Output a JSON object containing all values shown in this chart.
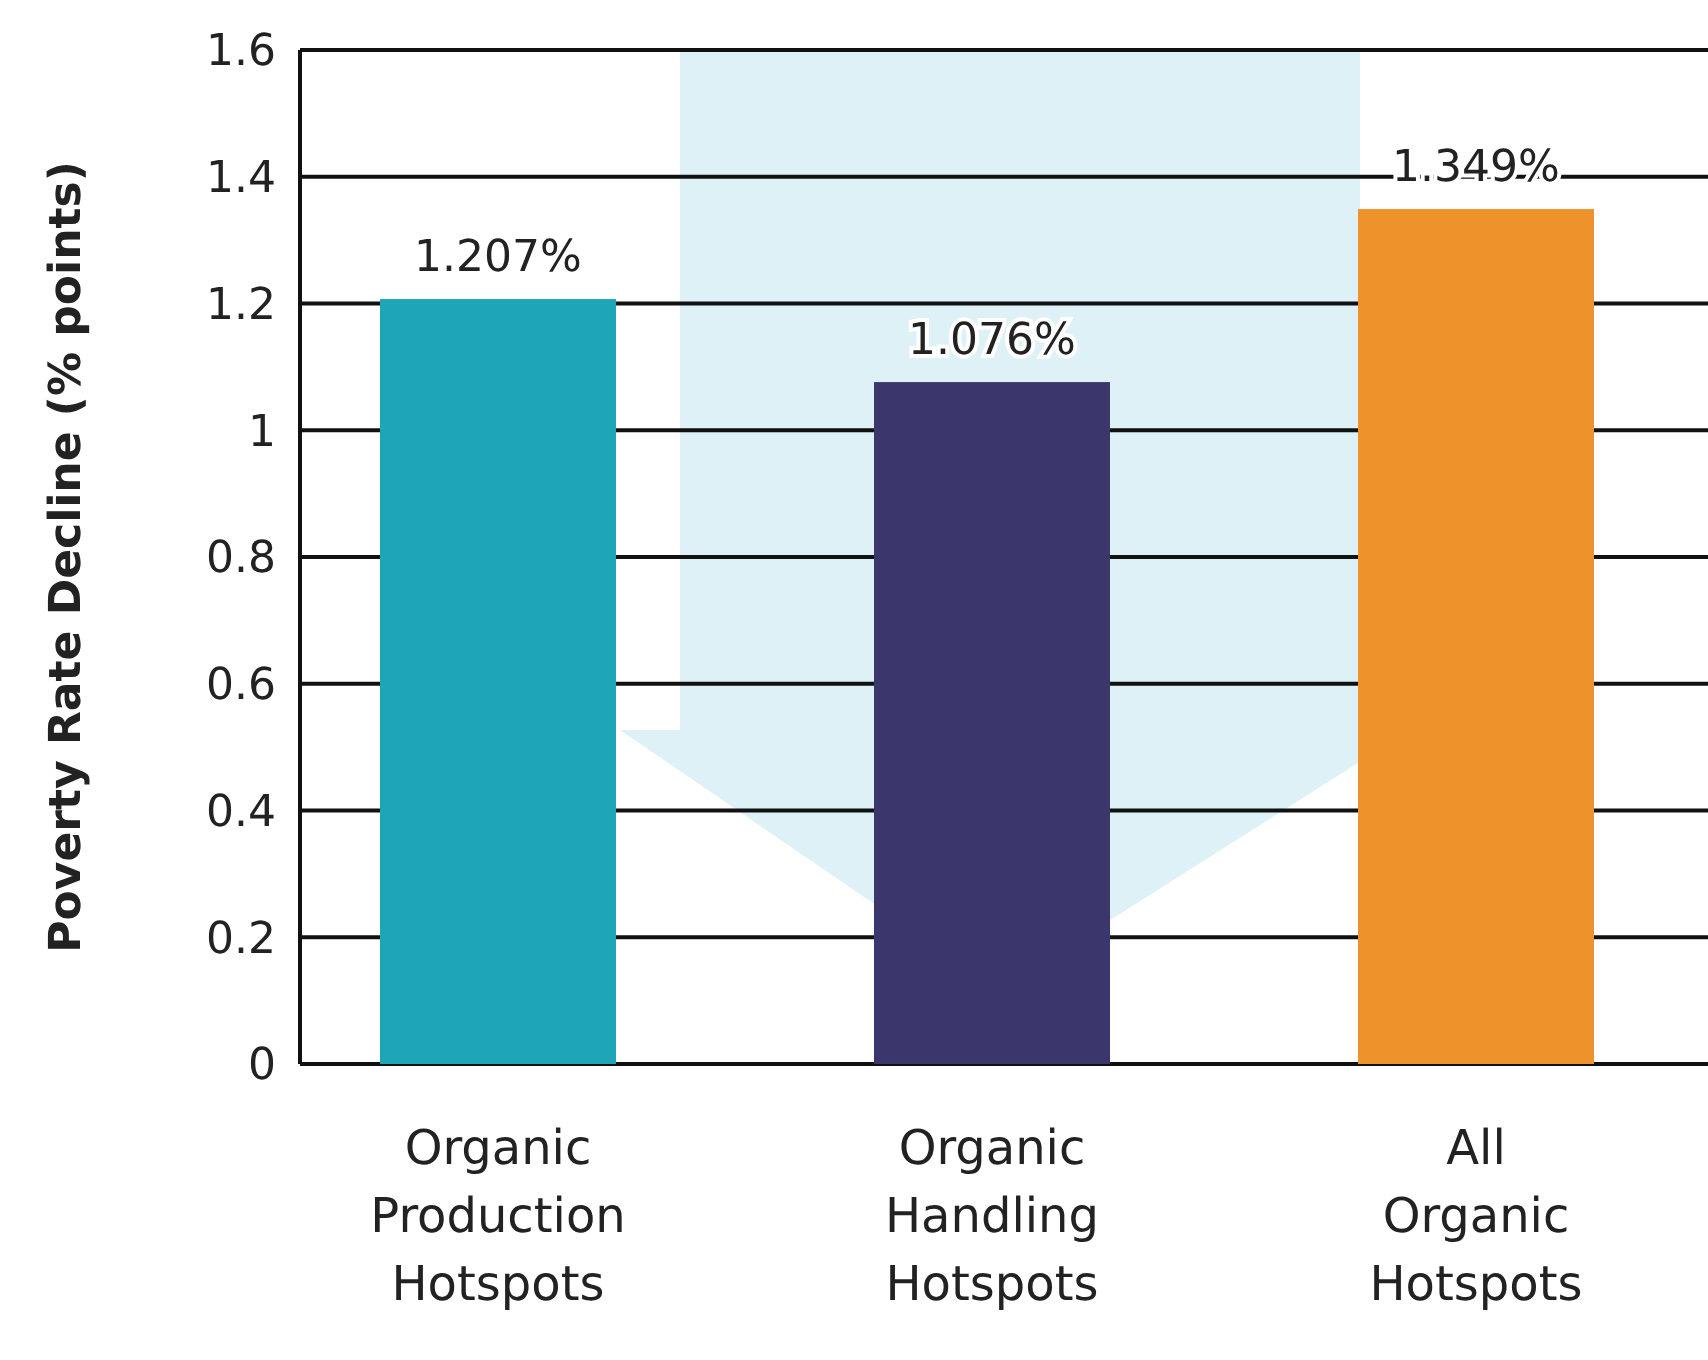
{
  "chart_data": {
    "type": "bar",
    "ylabel": "Poverty Rate Decline (% points)",
    "categories": [
      "Organic Production Hotspots",
      "Organic Handling Hotspots",
      "All Organic Hotspots"
    ],
    "values": [
      1.207,
      1.076,
      1.349
    ],
    "colors": [
      "#1ea5b8",
      "#3b366b",
      "#ee922b"
    ],
    "value_labels": [
      "1.207%",
      "1.076%",
      "1.349%"
    ],
    "ylim": [
      0,
      1.6
    ],
    "yticks": [
      0,
      0.2,
      0.4,
      0.6,
      0.8,
      1,
      1.2,
      1.4,
      1.6
    ],
    "grid": "y"
  }
}
